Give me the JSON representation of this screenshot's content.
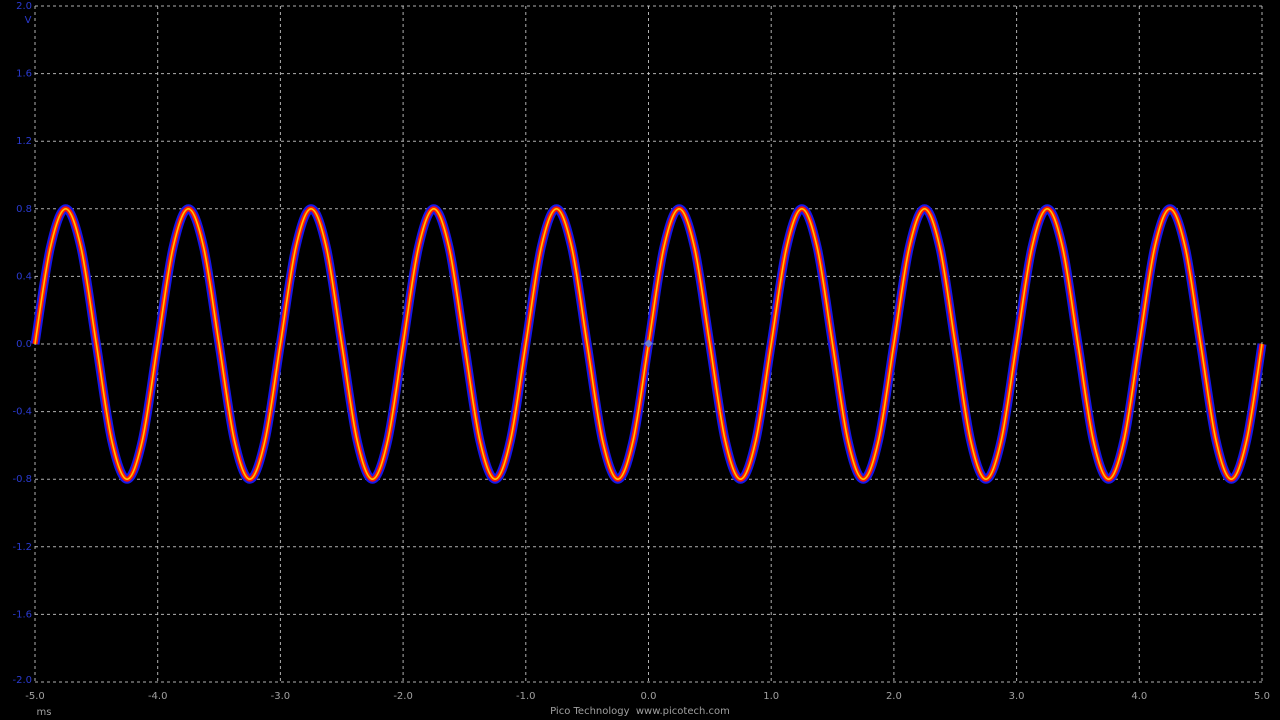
{
  "chart_data": {
    "type": "line",
    "xlabel": "ms",
    "ylabel": "V",
    "footer": "Pico Technology  www.picotech.com",
    "xlim": [
      -5,
      5
    ],
    "ylim": [
      -2,
      2
    ],
    "xticks": [
      {
        "value": -5,
        "label": "-5.0"
      },
      {
        "value": -4,
        "label": "-4.0"
      },
      {
        "value": -3,
        "label": "-3.0"
      },
      {
        "value": -2,
        "label": "-2.0"
      },
      {
        "value": -1,
        "label": "-1.0"
      },
      {
        "value": 0,
        "label": "0.0"
      },
      {
        "value": 1,
        "label": "1.0"
      },
      {
        "value": 2,
        "label": "2.0"
      },
      {
        "value": 3,
        "label": "3.0"
      },
      {
        "value": 4,
        "label": "4.0"
      },
      {
        "value": 5,
        "label": "5.0"
      }
    ],
    "yticks": [
      {
        "value": 2,
        "label": "2.0"
      },
      1.6,
      1.2,
      0.8,
      0.4,
      {
        "value": 0,
        "label": "0.0"
      },
      -0.4,
      -0.8,
      -1.2,
      -1.6,
      {
        "value": -2,
        "label": "-2.0"
      }
    ],
    "grid": true,
    "x": [
      -5,
      -4.875,
      -4.75,
      -4.625,
      -4.5,
      -4.375,
      -4.25,
      -4.125,
      -4,
      -3.875,
      -3.75,
      -3.625,
      -3.5,
      -3.375,
      -3.25,
      -3.125,
      -3,
      -2.875,
      -2.75,
      -2.625,
      -2.5,
      -2.375,
      -2.25,
      -2.125,
      -2,
      -1.875,
      -1.75,
      -1.625,
      -1.5,
      -1.375,
      -1.25,
      -1.125,
      -1,
      -0.875,
      -0.75,
      -0.625,
      -0.5,
      -0.375,
      -0.25,
      -0.125,
      0,
      0.125,
      0.25,
      0.375,
      0.5,
      0.625,
      0.75,
      0.875,
      1,
      1.125,
      1.25,
      1.375,
      1.5,
      1.625,
      1.75,
      1.875,
      2,
      2.125,
      2.25,
      2.375,
      2.5,
      2.625,
      2.75,
      2.875,
      3,
      3.125,
      3.25,
      3.375,
      3.5,
      3.625,
      3.75,
      3.875,
      4,
      4.125,
      4.25,
      4.375,
      4.5,
      4.625,
      4.75,
      4.875,
      5
    ],
    "series": [
      {
        "color": "#ff1a00",
        "values": [
          0,
          0.57,
          0.8,
          0.57,
          0,
          -0.57,
          -0.8,
          -0.57,
          0,
          0.57,
          0.8,
          0.57,
          0,
          -0.57,
          -0.8,
          -0.57,
          0,
          0.57,
          0.8,
          0.57,
          0,
          -0.57,
          -0.8,
          -0.57,
          0,
          0.57,
          0.8,
          0.57,
          0,
          -0.57,
          -0.8,
          -0.57,
          0,
          0.57,
          0.8,
          0.57,
          0,
          -0.57,
          -0.8,
          -0.57,
          0,
          0.57,
          0.8,
          0.57,
          0,
          -0.57,
          -0.8,
          -0.57,
          0,
          0.57,
          0.8,
          0.57,
          0,
          -0.57,
          -0.8,
          -0.57,
          0,
          0.57,
          0.8,
          0.57,
          0,
          -0.57,
          -0.8,
          -0.57,
          0,
          0.57,
          0.8,
          0.57,
          0,
          -0.57,
          -0.8,
          -0.57,
          0,
          0.57,
          0.8,
          0.57,
          0,
          -0.57,
          -0.8,
          -0.57,
          0
        ]
      }
    ]
  }
}
